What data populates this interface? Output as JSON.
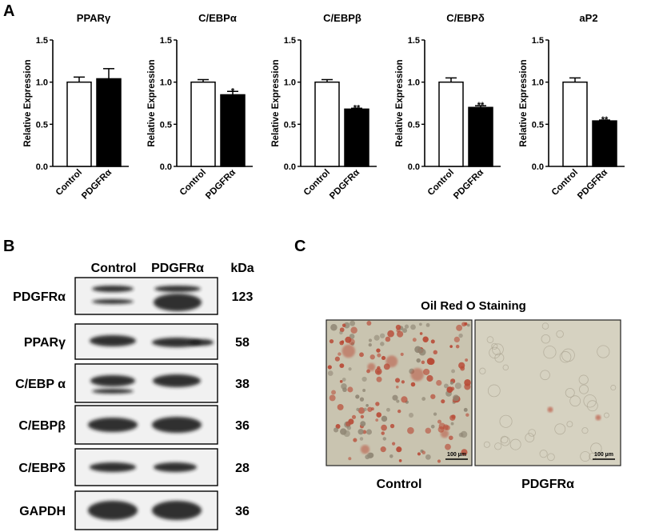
{
  "panels": {
    "a": "A",
    "b": "B",
    "c": "C"
  },
  "chart_data": [
    {
      "type": "bar",
      "title": "PPARγ",
      "ylabel": "Relative Expression",
      "xlabel": "",
      "categories": [
        "Control",
        "PDGFRα"
      ],
      "values": [
        1.0,
        1.04
      ],
      "errors": [
        0.06,
        0.12
      ],
      "significance": [
        "",
        ""
      ],
      "bar_fills": [
        "#ffffff",
        "#000000"
      ],
      "ylim": [
        0,
        1.5
      ],
      "yticks": [
        "0.0",
        "0.5",
        "1.0",
        "1.5"
      ]
    },
    {
      "type": "bar",
      "title": "C/EBPα",
      "ylabel": "Relative Expression",
      "xlabel": "",
      "categories": [
        "Control",
        "PDGFRα"
      ],
      "values": [
        1.0,
        0.85
      ],
      "errors": [
        0.03,
        0.04
      ],
      "significance": [
        "",
        "*"
      ],
      "bar_fills": [
        "#ffffff",
        "#000000"
      ],
      "ylim": [
        0,
        1.5
      ],
      "yticks": [
        "0.0",
        "0.5",
        "1.0",
        "1.5"
      ]
    },
    {
      "type": "bar",
      "title": "C/EBPβ",
      "ylabel": "Relative Expression",
      "xlabel": "",
      "categories": [
        "Control",
        "PDGFRα"
      ],
      "values": [
        1.0,
        0.68
      ],
      "errors": [
        0.03,
        0.01
      ],
      "significance": [
        "",
        "**"
      ],
      "bar_fills": [
        "#ffffff",
        "#000000"
      ],
      "ylim": [
        0,
        1.5
      ],
      "yticks": [
        "0.0",
        "0.5",
        "1.0",
        "1.5"
      ]
    },
    {
      "type": "bar",
      "title": "C/EBPδ",
      "ylabel": "Relative Expression",
      "xlabel": "",
      "categories": [
        "Control",
        "PDGFRα"
      ],
      "values": [
        1.0,
        0.7
      ],
      "errors": [
        0.05,
        0.02
      ],
      "significance": [
        "",
        "**"
      ],
      "bar_fills": [
        "#ffffff",
        "#000000"
      ],
      "ylim": [
        0,
        1.5
      ],
      "yticks": [
        "0.0",
        "0.5",
        "1.0",
        "1.5"
      ]
    },
    {
      "type": "bar",
      "title": "aP2",
      "ylabel": "Relative Expression",
      "xlabel": "",
      "categories": [
        "Control",
        "PDGFRα"
      ],
      "values": [
        1.0,
        0.54
      ],
      "errors": [
        0.05,
        0.01
      ],
      "significance": [
        "",
        "**"
      ],
      "bar_fills": [
        "#ffffff",
        "#000000"
      ],
      "ylim": [
        0,
        1.5
      ],
      "yticks": [
        "0.0",
        "0.5",
        "1.0",
        "1.5"
      ]
    }
  ],
  "western_blot": {
    "columns": [
      "Control",
      "PDGFRα"
    ],
    "kda_header": "kDa",
    "rows": [
      {
        "protein": "PDGFRα",
        "kda": "123"
      },
      {
        "protein": "PPARγ",
        "kda": "58"
      },
      {
        "protein": "C/EBP α",
        "kda": "38"
      },
      {
        "protein": "C/EBPβ",
        "kda": "36"
      },
      {
        "protein": "C/EBPδ",
        "kda": "28"
      },
      {
        "protein": "GAPDH",
        "kda": "36"
      }
    ]
  },
  "staining": {
    "title": "Oil Red O Staining",
    "labels": [
      "Control",
      "PDGFRα"
    ],
    "scale_bar": "100 µm",
    "colors": {
      "background": "#c9c4b0",
      "droplet": "#b84a36"
    }
  }
}
